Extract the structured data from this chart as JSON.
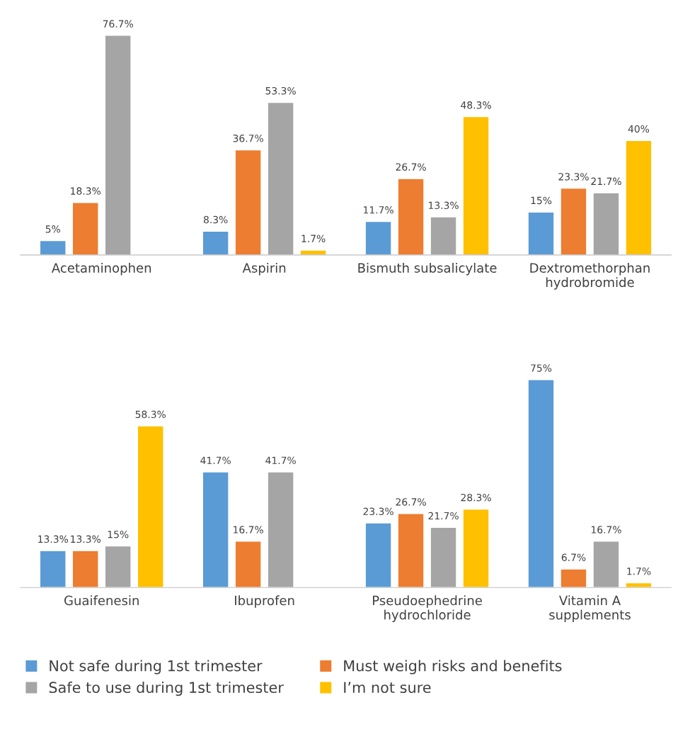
{
  "chart_data": [
    {
      "type": "bar",
      "categories": [
        "Acetaminophen",
        "Aspirin",
        "Bismuth subsalicylate",
        "Dextromethorphan\nhydrobromide"
      ],
      "series": [
        {
          "color": "#5b9bd5",
          "values": [
            5,
            8.3,
            11.7,
            15
          ],
          "value_labels": [
            "5%",
            "8.3%",
            "11.7%",
            "15%"
          ]
        },
        {
          "color": "#ed7d31",
          "values": [
            18.3,
            36.7,
            26.7,
            23.3
          ],
          "value_labels": [
            "18.3%",
            "36.7%",
            "26.7%",
            "23.3%"
          ]
        },
        {
          "color": "#a5a5a5",
          "values": [
            76.7,
            53.3,
            13.3,
            21.7
          ],
          "value_labels": [
            "76.7%",
            "53.3%",
            "13.3%",
            "21.7%"
          ]
        },
        {
          "color": "#ffc000",
          "values": [
            null,
            1.7,
            48.3,
            40
          ],
          "value_labels": [
            null,
            "1.7%",
            "48.3%",
            "40%"
          ]
        }
      ]
    },
    {
      "type": "bar",
      "categories": [
        "Guaifenesin",
        "Ibuprofen",
        "Pseudoephedrine\nhydrochloride",
        "Vitamin A\nsupplements"
      ],
      "legend": "bottom",
      "series": [
        {
          "name": "Not safe during 1st trimester",
          "color": "#5b9bd5",
          "values": [
            13.3,
            41.7,
            23.3,
            75
          ],
          "value_labels": [
            "13.3%",
            "41.7%",
            "23.3%",
            "75%"
          ]
        },
        {
          "name": "Must weigh risks and benefits",
          "color": "#ed7d31",
          "values": [
            13.3,
            16.7,
            26.7,
            6.7
          ],
          "value_labels": [
            "13.3%",
            "16.7%",
            "26.7%",
            "6.7%"
          ]
        },
        {
          "name": "Safe to use during 1st trimester",
          "color": "#a5a5a5",
          "values": [
            15,
            41.7,
            21.7,
            16.7
          ],
          "value_labels": [
            "15%",
            "41.7%",
            "21.7%",
            "16.7%"
          ]
        },
        {
          "name": "I’m not sure",
          "color": "#ffc000",
          "values": [
            58.3,
            null,
            28.3,
            1.7
          ],
          "value_labels": [
            "58.3%",
            null,
            "28.3%",
            "1.7%"
          ]
        }
      ]
    }
  ]
}
